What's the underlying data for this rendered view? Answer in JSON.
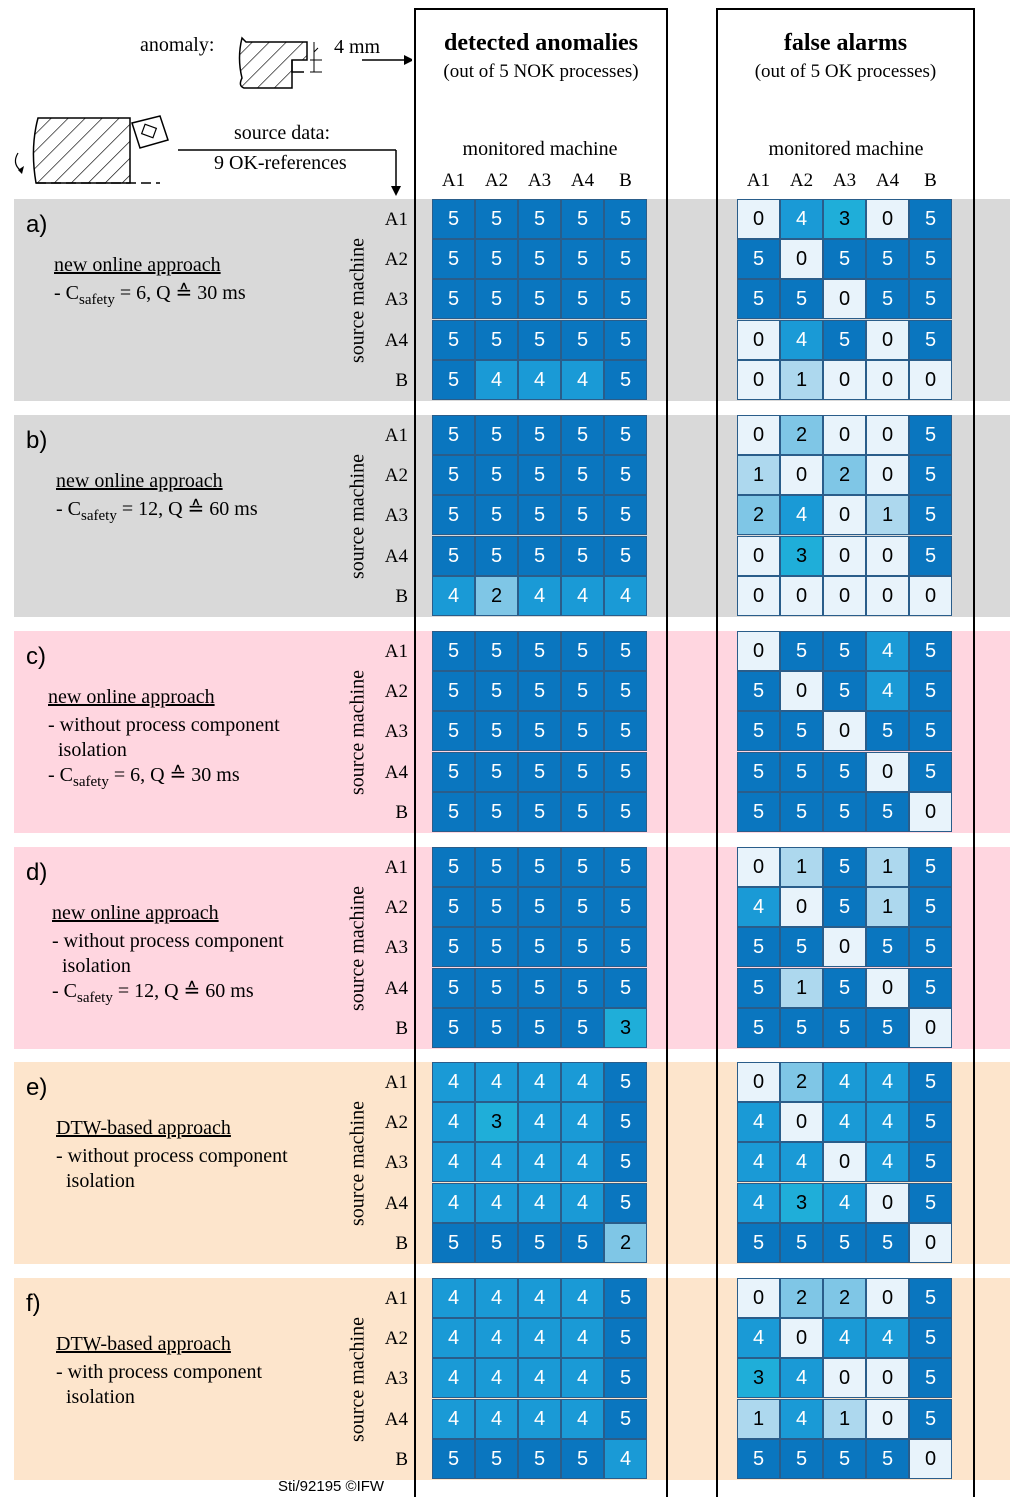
{
  "header": {
    "anomaly_label": "anomaly:",
    "anomaly_size": "4 mm",
    "source_label": "source data:",
    "source_refs": "9 OK-references",
    "detected_title": "detected anomalies",
    "detected_sub": "(out of 5 NOK processes)",
    "false_title": "false alarms",
    "false_sub": "(out of 5 OK processes)",
    "monitored_machine": "monitored machine",
    "source_machine": "source machine"
  },
  "footer": "Sti/92195 ©IFW",
  "chart_data": {
    "type": "heatmap",
    "x_label": "monitored machine",
    "y_label": "source machine",
    "columns": [
      "A1",
      "A2",
      "A3",
      "A4",
      "B"
    ],
    "rows": [
      "A1",
      "A2",
      "A3",
      "A4",
      "B"
    ],
    "value_range": [
      0,
      5
    ],
    "panels": [
      {
        "letter": "a)",
        "approach": "new online approach",
        "bullets": [
          {
            "pre": "- C",
            "sub": "safety",
            "post": " = 6, Q ≙ 30 ms"
          }
        ],
        "band_color": "#d9d9d9",
        "detected": [
          [
            5,
            5,
            5,
            5,
            5
          ],
          [
            5,
            5,
            5,
            5,
            5
          ],
          [
            5,
            5,
            5,
            5,
            5
          ],
          [
            5,
            5,
            5,
            5,
            5
          ],
          [
            5,
            4,
            4,
            4,
            5
          ]
        ],
        "false_alarms": [
          [
            0,
            4,
            3,
            0,
            5
          ],
          [
            5,
            0,
            5,
            5,
            5
          ],
          [
            5,
            5,
            0,
            5,
            5
          ],
          [
            0,
            4,
            5,
            0,
            5
          ],
          [
            0,
            1,
            0,
            0,
            0
          ]
        ]
      },
      {
        "letter": "b)",
        "approach": "new online approach",
        "bullets": [
          {
            "pre": "- C",
            "sub": "safety",
            "post": " = 12, Q ≙ 60 ms"
          }
        ],
        "band_color": "#d9d9d9",
        "detected": [
          [
            5,
            5,
            5,
            5,
            5
          ],
          [
            5,
            5,
            5,
            5,
            5
          ],
          [
            5,
            5,
            5,
            5,
            5
          ],
          [
            5,
            5,
            5,
            5,
            5
          ],
          [
            4,
            2,
            4,
            4,
            4
          ]
        ],
        "false_alarms": [
          [
            0,
            2,
            0,
            0,
            5
          ],
          [
            1,
            0,
            2,
            0,
            5
          ],
          [
            2,
            4,
            0,
            1,
            5
          ],
          [
            0,
            3,
            0,
            0,
            5
          ],
          [
            0,
            0,
            0,
            0,
            0
          ]
        ]
      },
      {
        "letter": "c)",
        "approach": "new online approach",
        "bullets": [
          {
            "pre": "- without process component",
            "sub": "",
            "post": ""
          },
          {
            "pre": "  isolation",
            "sub": "",
            "post": ""
          },
          {
            "pre": "- C",
            "sub": "safety",
            "post": " = 6, Q ≙ 30 ms"
          }
        ],
        "band_color": "#ffd6e0",
        "detected": [
          [
            5,
            5,
            5,
            5,
            5
          ],
          [
            5,
            5,
            5,
            5,
            5
          ],
          [
            5,
            5,
            5,
            5,
            5
          ],
          [
            5,
            5,
            5,
            5,
            5
          ],
          [
            5,
            5,
            5,
            5,
            5
          ]
        ],
        "false_alarms": [
          [
            0,
            5,
            5,
            4,
            5
          ],
          [
            5,
            0,
            5,
            4,
            5
          ],
          [
            5,
            5,
            0,
            5,
            5
          ],
          [
            5,
            5,
            5,
            0,
            5
          ],
          [
            5,
            5,
            5,
            5,
            0
          ]
        ]
      },
      {
        "letter": "d)",
        "approach": "new online approach",
        "bullets": [
          {
            "pre": "- without process component",
            "sub": "",
            "post": ""
          },
          {
            "pre": "  isolation",
            "sub": "",
            "post": ""
          },
          {
            "pre": "- C",
            "sub": "safety",
            "post": " = 12, Q ≙ 60 ms"
          }
        ],
        "band_color": "#ffd6e0",
        "detected": [
          [
            5,
            5,
            5,
            5,
            5
          ],
          [
            5,
            5,
            5,
            5,
            5
          ],
          [
            5,
            5,
            5,
            5,
            5
          ],
          [
            5,
            5,
            5,
            5,
            5
          ],
          [
            5,
            5,
            5,
            5,
            3
          ]
        ],
        "false_alarms": [
          [
            0,
            1,
            5,
            1,
            5
          ],
          [
            4,
            0,
            5,
            1,
            5
          ],
          [
            5,
            5,
            0,
            5,
            5
          ],
          [
            5,
            1,
            5,
            0,
            5
          ],
          [
            5,
            5,
            5,
            5,
            0
          ]
        ]
      },
      {
        "letter": "e)",
        "approach": "DTW-based approach",
        "bullets": [
          {
            "pre": "- without process component",
            "sub": "",
            "post": ""
          },
          {
            "pre": "  isolation",
            "sub": "",
            "post": ""
          }
        ],
        "band_color": "#fde5cc",
        "detected": [
          [
            4,
            4,
            4,
            4,
            5
          ],
          [
            4,
            3,
            4,
            4,
            5
          ],
          [
            4,
            4,
            4,
            4,
            5
          ],
          [
            4,
            4,
            4,
            4,
            5
          ],
          [
            5,
            5,
            5,
            5,
            2
          ]
        ],
        "false_alarms": [
          [
            0,
            2,
            4,
            4,
            5
          ],
          [
            4,
            0,
            4,
            4,
            5
          ],
          [
            4,
            4,
            0,
            4,
            5
          ],
          [
            4,
            3,
            4,
            0,
            5
          ],
          [
            5,
            5,
            5,
            5,
            0
          ]
        ]
      },
      {
        "letter": "f)",
        "approach": "DTW-based approach",
        "bullets": [
          {
            "pre": "- with process component",
            "sub": "",
            "post": ""
          },
          {
            "pre": "  isolation",
            "sub": "",
            "post": ""
          }
        ],
        "band_color": "#fde5cc",
        "detected": [
          [
            4,
            4,
            4,
            4,
            5
          ],
          [
            4,
            4,
            4,
            4,
            5
          ],
          [
            4,
            4,
            4,
            4,
            5
          ],
          [
            4,
            4,
            4,
            4,
            5
          ],
          [
            5,
            5,
            5,
            5,
            4
          ]
        ],
        "false_alarms": [
          [
            0,
            2,
            2,
            0,
            5
          ],
          [
            4,
            0,
            4,
            4,
            5
          ],
          [
            3,
            4,
            0,
            0,
            5
          ],
          [
            1,
            4,
            1,
            0,
            5
          ],
          [
            5,
            5,
            5,
            5,
            0
          ]
        ]
      }
    ],
    "colors": {
      "0": "#e8f3fb",
      "1": "#add8ee",
      "2": "#7fc6e6",
      "3": "#1faed9",
      "4": "#1a9ad6",
      "5": "#0a76bf"
    }
  }
}
